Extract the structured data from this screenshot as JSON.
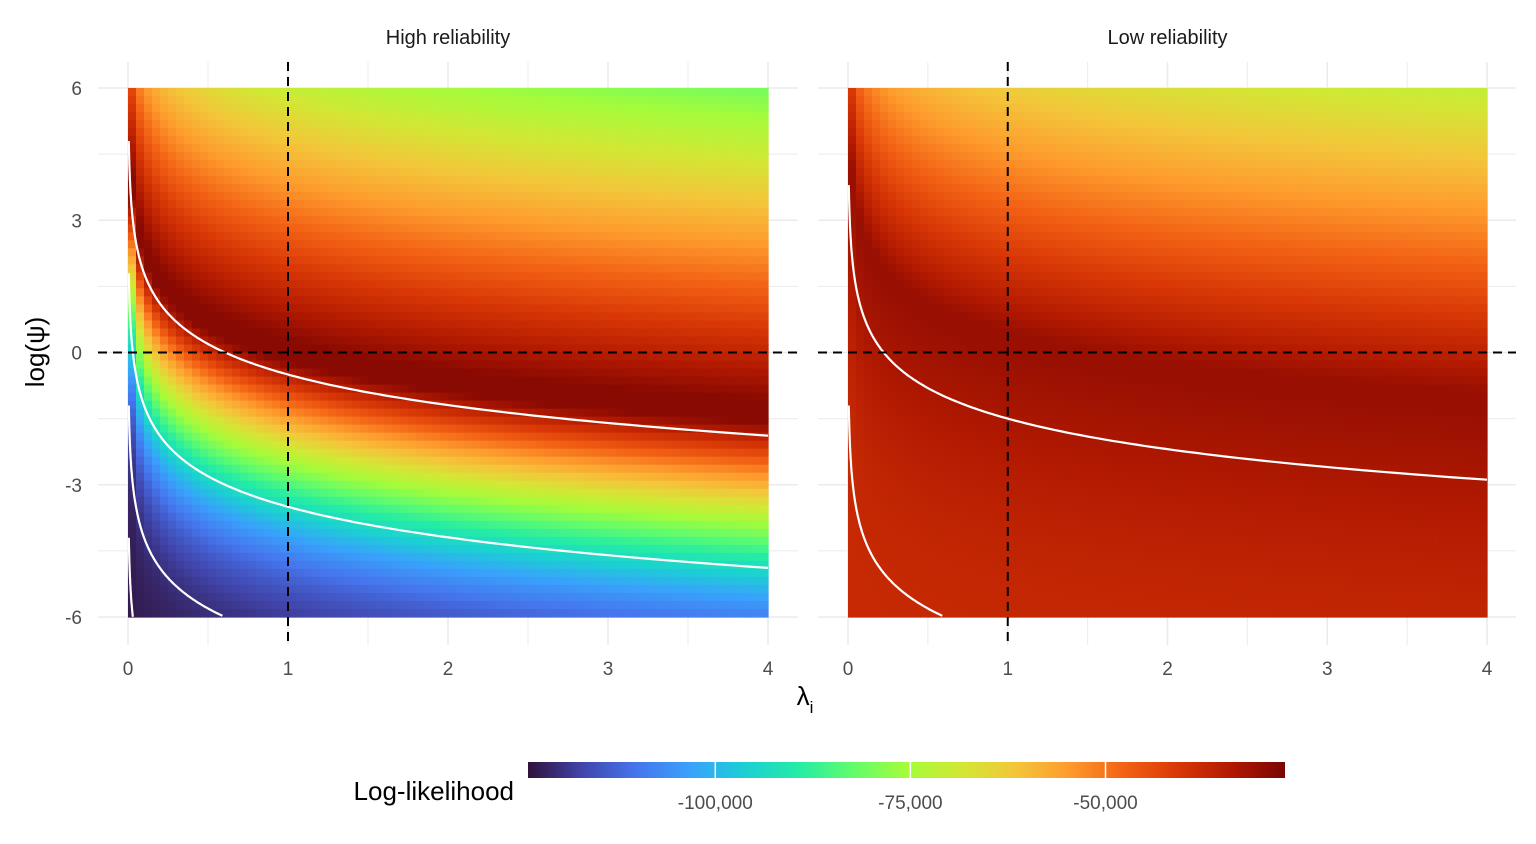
{
  "chart_data": {
    "type": "heatmap",
    "subtype": "faceted contour heatmap",
    "xlabel": "λ",
    "xlabel_subscript": "i",
    "ylabel": "log(ψ)",
    "xlim": [
      0,
      4
    ],
    "ylim": [
      -6,
      6
    ],
    "x_ticks": [
      0,
      1,
      2,
      3,
      4
    ],
    "x_tick_labels": [
      "0",
      "1",
      "2",
      "3",
      "4"
    ],
    "y_ticks": [
      -6,
      -3,
      0,
      3,
      6
    ],
    "y_tick_labels": [
      "-6",
      "-3",
      "0",
      "3",
      "6"
    ],
    "reference_lines": {
      "x": 1,
      "y": 0,
      "style": "dashed"
    },
    "grid": true,
    "panels": [
      {
        "title": "High reliability",
        "contour_levels": [
          -45.5,
          -42.5,
          -39.5,
          -36.5,
          -33.5,
          -30.5,
          -27.5,
          -24.5,
          -21.5,
          -18.5,
          -15.5,
          -12.5,
          -9.5,
          -6.5,
          -3.5,
          -0.5
        ]
      },
      {
        "title": "Low reliability",
        "contour_levels": [
          -46.5,
          -41.5,
          -36.5,
          -31.5,
          -26.5,
          -21.5,
          -16.5,
          -11.5,
          -6.5,
          -1.5
        ]
      }
    ],
    "legend": {
      "title": "Log-likelihood",
      "position": "bottom",
      "ticks": [
        -100000,
        -75000,
        -50000
      ],
      "tick_labels": [
        "-100,000",
        "-75,000",
        "-50,000"
      ],
      "range": [
        -124000,
        -27000
      ],
      "palette": [
        "#30123b",
        "#4145ab",
        "#4675ed",
        "#39a2fc",
        "#1bcfd4",
        "#24eca6",
        "#61fc6c",
        "#a4fc3b",
        "#d1e834",
        "#f3c63a",
        "#fe9b2d",
        "#f36315",
        "#d93806",
        "#b11901",
        "#7a0403"
      ]
    }
  }
}
